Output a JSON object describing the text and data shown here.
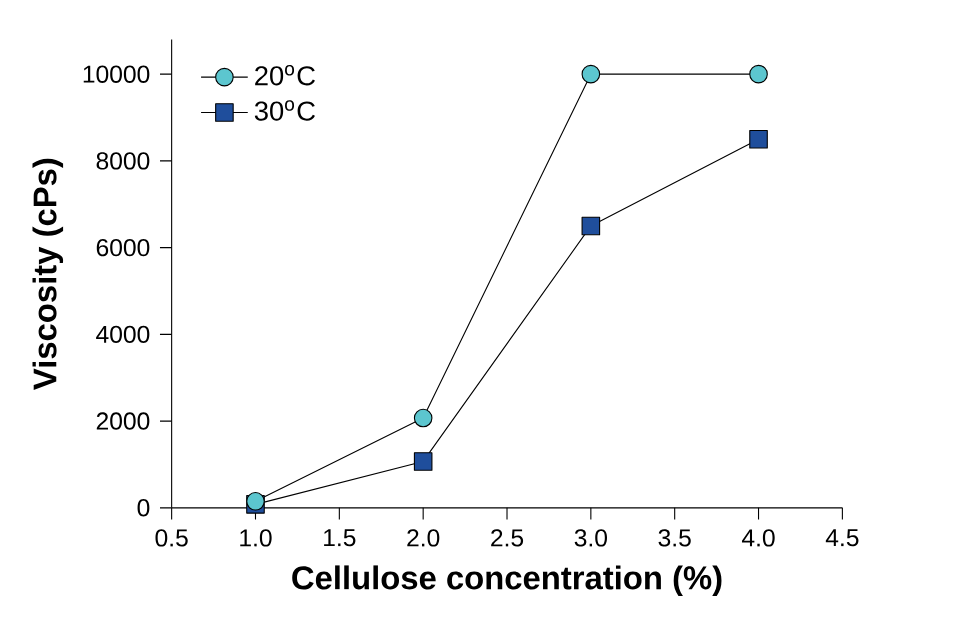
{
  "chart_data": {
    "type": "line",
    "xlabel": "Cellulose concentration (%)",
    "ylabel": "Viscosity (cPs)",
    "x": [
      1.0,
      2.0,
      3.0,
      4.0
    ],
    "series": [
      {
        "name": "20$^{o}$C",
        "color": "#5cc6cf",
        "marker": "circle",
        "values": [
          150,
          2070,
          10000,
          10000
        ]
      },
      {
        "name": "30$^{o}$C",
        "color": "#1f4e9c",
        "marker": "square",
        "values": [
          80,
          1070,
          6500,
          8500
        ]
      }
    ],
    "xlim": [
      0.5,
      4.5
    ],
    "xticks": [
      {
        "value": 0.5,
        "label": "0.5"
      },
      {
        "value": 1.0,
        "label": "1.0"
      },
      {
        "value": 1.5,
        "label": "1.5"
      },
      {
        "value": 2.0,
        "label": "2.0"
      },
      {
        "value": 2.5,
        "label": "2.5"
      },
      {
        "value": 3.0,
        "label": "3.0"
      },
      {
        "value": 3.5,
        "label": "3.5"
      },
      {
        "value": 4.0,
        "label": "4.0"
      },
      {
        "value": 4.5,
        "label": "4.5"
      }
    ],
    "ylim": [
      0,
      10800
    ],
    "yticks": [
      0,
      2000,
      4000,
      6000,
      8000,
      10000
    ],
    "grid": false,
    "legend": "top left",
    "line_style": "solid"
  }
}
